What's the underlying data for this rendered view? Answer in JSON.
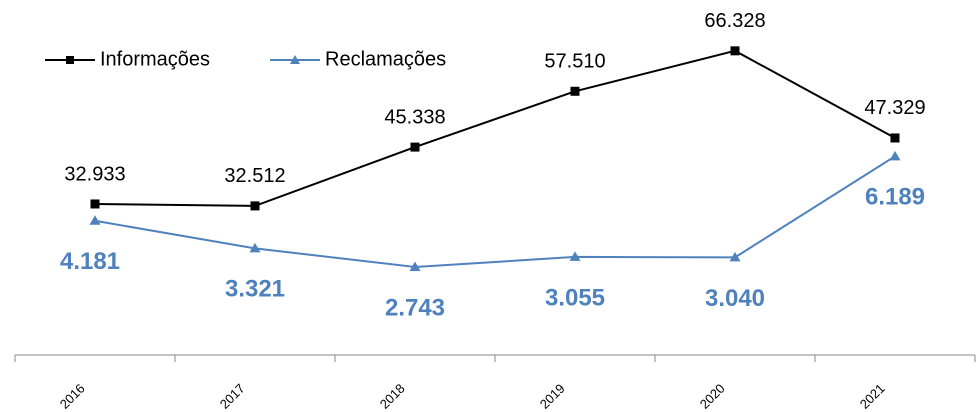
{
  "chart_data": {
    "type": "line",
    "categories": [
      "2016",
      "2017",
      "2018",
      "2019",
      "2020",
      "2021"
    ],
    "series": [
      {
        "name": "Informações",
        "color": "#000000",
        "marker": "square",
        "values": [
          32933,
          32512,
          45338,
          57510,
          66328,
          47329
        ],
        "value_labels": [
          "32.933",
          "32.512",
          "45.338",
          "57.510",
          "66.328",
          "47.329"
        ]
      },
      {
        "name": "Reclamações",
        "color": "#4f81bd",
        "marker": "triangle",
        "axis": "y2",
        "values": [
          4181,
          3321,
          2743,
          3055,
          3040,
          6189
        ],
        "value_labels": [
          "4.181",
          "3.321",
          "2.743",
          "3.055",
          "3.040",
          "6.189"
        ]
      }
    ],
    "ylim": [
      0,
      70000
    ],
    "y2lim": [
      0,
      10000
    ],
    "grid": false,
    "legend": "top-left"
  }
}
